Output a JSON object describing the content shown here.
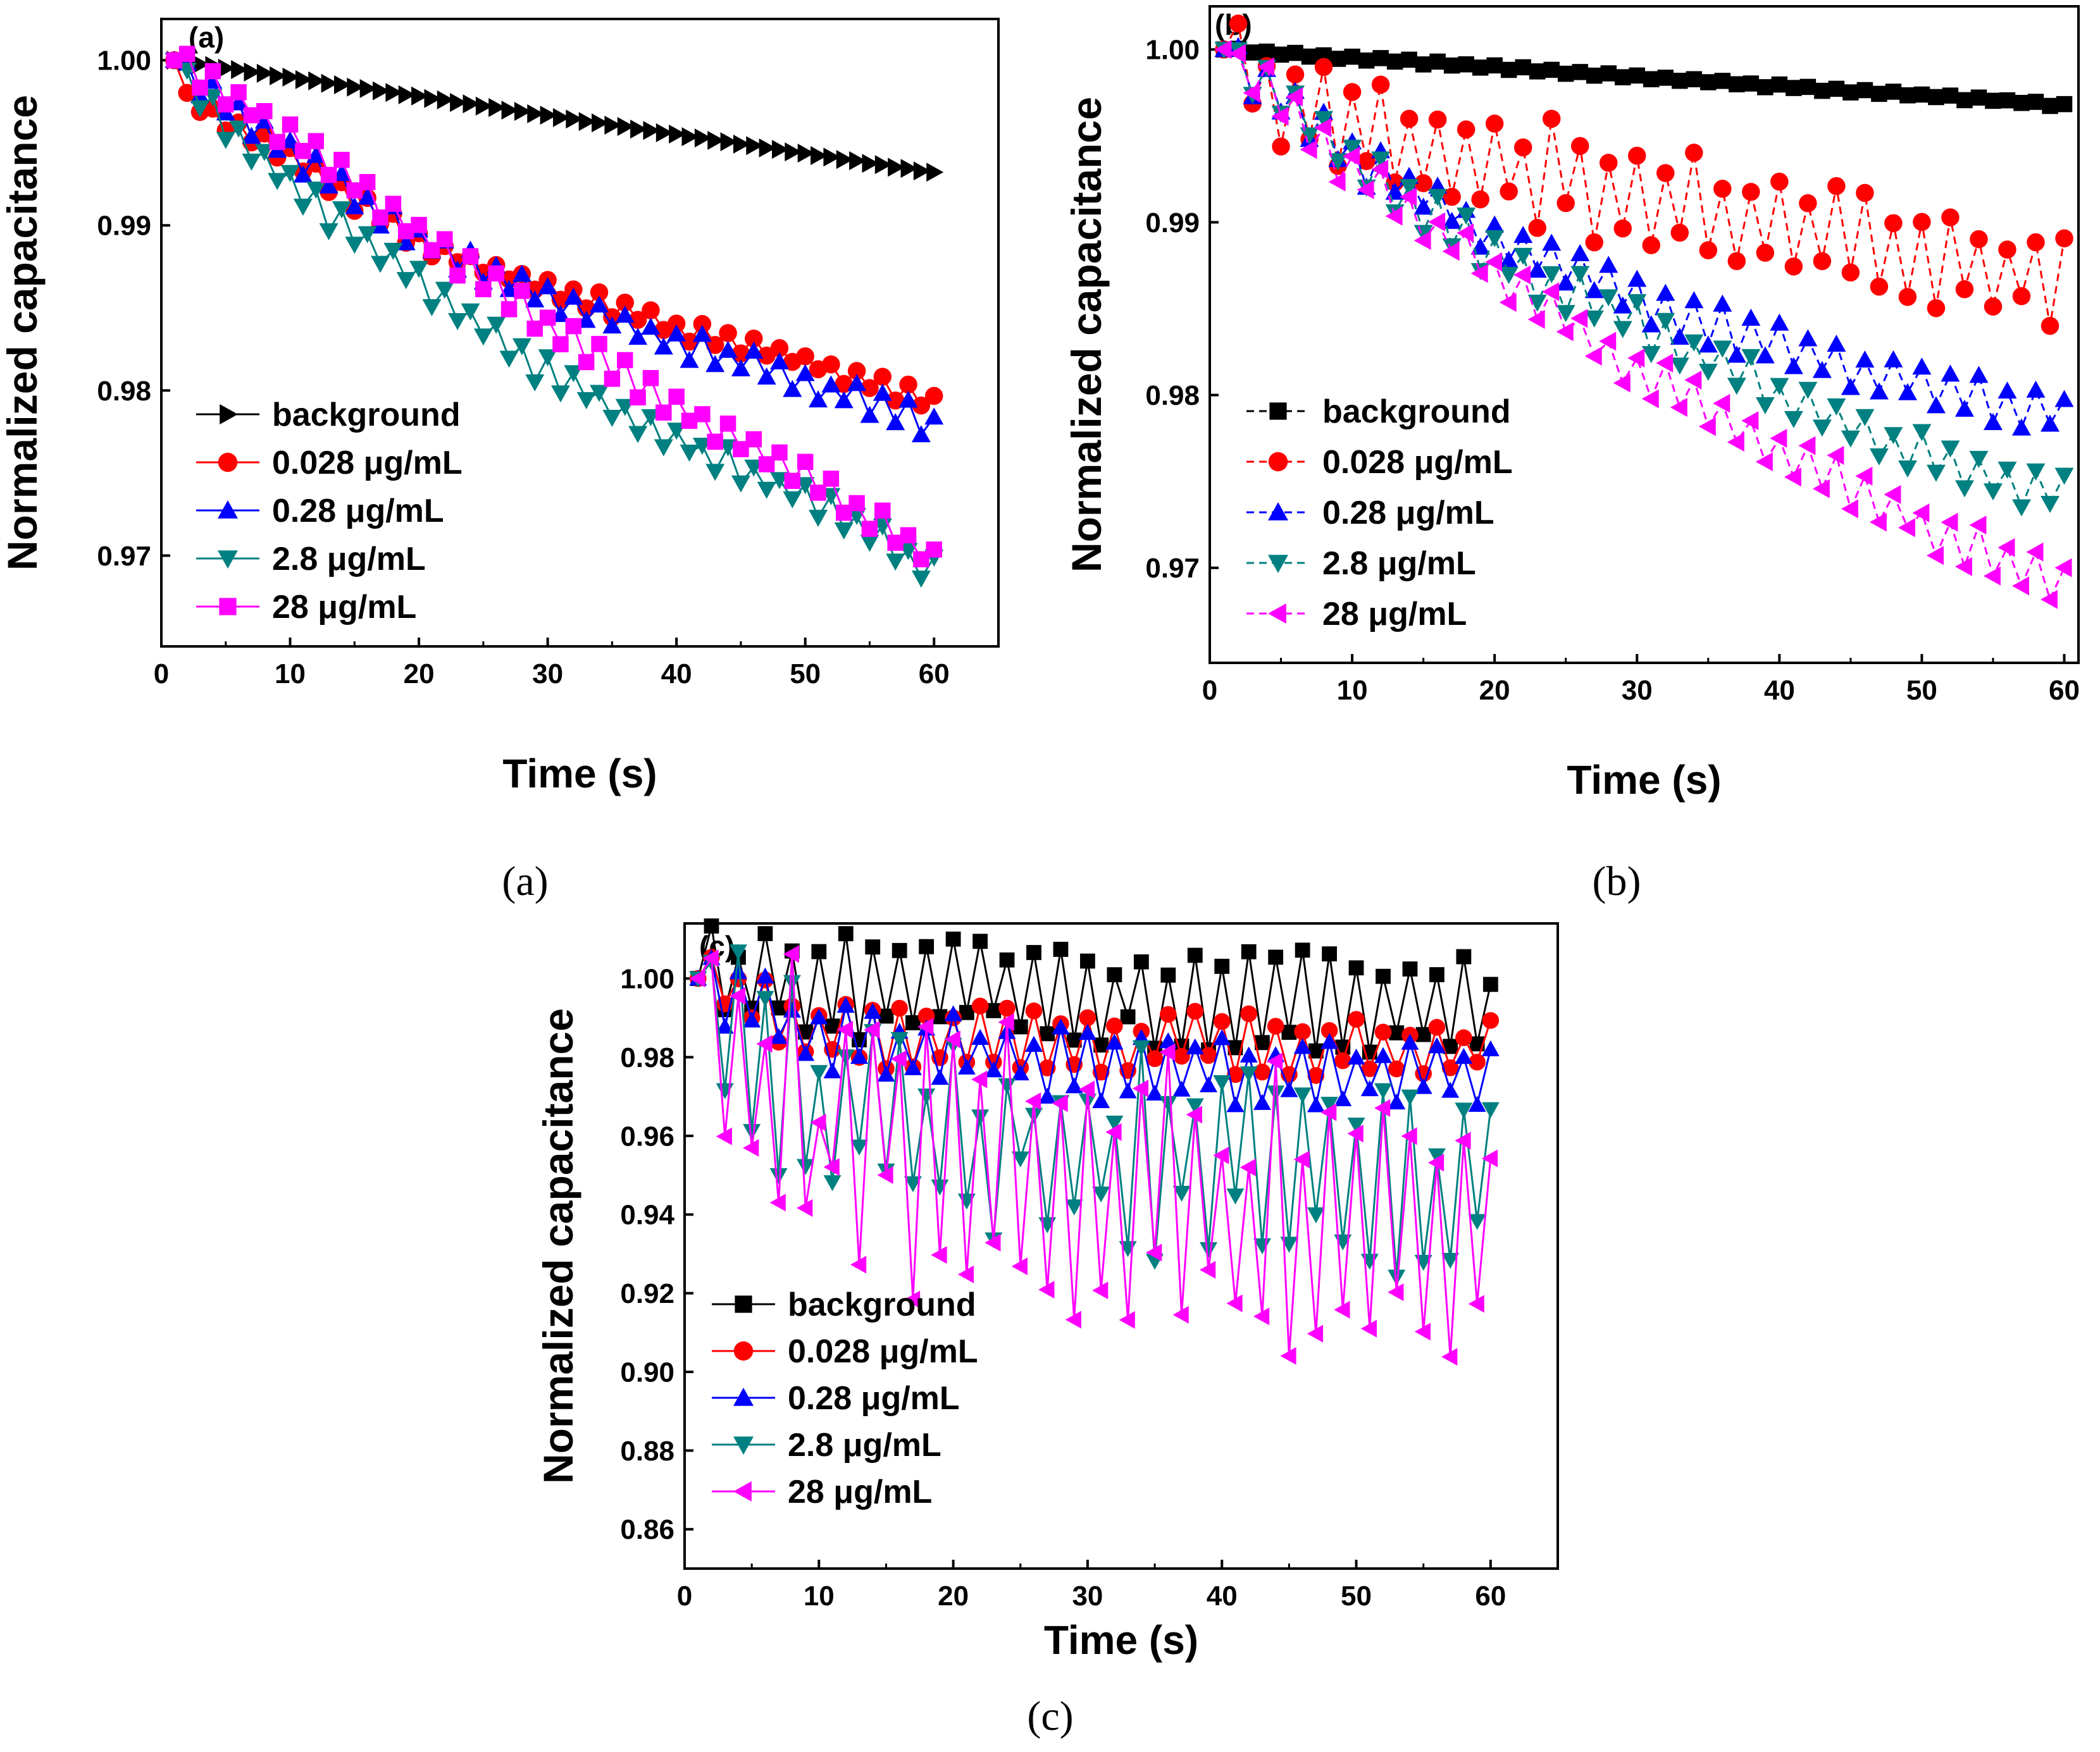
{
  "chart_data": [
    {
      "panel": "(a)",
      "caption": "(a)",
      "type": "line",
      "xlabel": "Time (s)",
      "ylabel": "Normalized capacitance",
      "xlim": [
        0,
        65
      ],
      "ylim": [
        0.9645,
        1.0025
      ],
      "xticks": [
        0,
        10,
        20,
        30,
        40,
        50,
        60
      ],
      "yticks": [
        0.97,
        0.98,
        0.99,
        1.0
      ],
      "ytick_labels": [
        "0.97",
        "0.98",
        "0.99",
        "1.00"
      ],
      "legend_position": "bottom-left",
      "series": [
        {
          "name": "background",
          "color": "#000000",
          "marker": "triangle-right",
          "dash": "",
          "anchors": [
            [
              1,
              1.0
            ],
            [
              60,
              0.9932
            ]
          ],
          "amp": 2e-05,
          "seed": 1
        },
        {
          "name": "0.028 μg/mL",
          "color": "#ff0000",
          "marker": "circle",
          "dash": "",
          "anchors": [
            [
              1,
              1.0
            ],
            [
              2,
              0.9976
            ],
            [
              10,
              0.9942
            ],
            [
              20,
              0.989
            ],
            [
              30,
              0.9862
            ],
            [
              40,
              0.9838
            ],
            [
              50,
              0.9818
            ],
            [
              60,
              0.9792
            ]
          ],
          "amp": 0.0006,
          "seed": 2
        },
        {
          "name": "0.28 μg/mL",
          "color": "#0000ff",
          "marker": "triangle-up",
          "dash": "",
          "anchors": [
            [
              1,
              1.0
            ],
            [
              10,
              0.9945
            ],
            [
              20,
              0.9893
            ],
            [
              30,
              0.9855
            ],
            [
              40,
              0.983
            ],
            [
              50,
              0.9805
            ],
            [
              60,
              0.978
            ]
          ],
          "amp": 0.0008,
          "seed": 3
        },
        {
          "name": "2.8 μg/mL",
          "color": "#008080",
          "marker": "triangle-down",
          "dash": "",
          "anchors": [
            [
              1,
              1.0
            ],
            [
              5,
              0.996
            ],
            [
              10,
              0.9925
            ],
            [
              20,
              0.9865
            ],
            [
              30,
              0.981
            ],
            [
              40,
              0.977
            ],
            [
              50,
              0.9735
            ],
            [
              60,
              0.969
            ]
          ],
          "amp": 0.0009,
          "seed": 4
        },
        {
          "name": "28 μg/mL",
          "color": "#ff00ff",
          "marker": "square",
          "dash": "",
          "anchors": [
            [
              1,
              1.0
            ],
            [
              10,
              0.9955
            ],
            [
              20,
              0.9895
            ],
            [
              30,
              0.984
            ],
            [
              40,
              0.979
            ],
            [
              50,
              0.9748
            ],
            [
              60,
              0.9698
            ]
          ],
          "amp": 0.0008,
          "seed": 5
        }
      ]
    },
    {
      "panel": "(b)",
      "caption": "(b)",
      "type": "line",
      "xlabel": "Time (s)",
      "ylabel": "Normalized capacitance",
      "xlim": [
        0,
        61
      ],
      "ylim": [
        0.9645,
        1.0025
      ],
      "xticks": [
        0,
        10,
        20,
        30,
        40,
        50,
        60
      ],
      "yticks": [
        0.97,
        0.98,
        0.99,
        1.0
      ],
      "ytick_labels": [
        "0.97",
        "0.98",
        "0.99",
        "1.00"
      ],
      "legend_position": "bottom-left",
      "series": [
        {
          "name": "background",
          "color": "#000000",
          "marker": "square",
          "dash": "12,8",
          "anchors": [
            [
              1,
              1.0
            ],
            [
              60,
              0.9968
            ]
          ],
          "amp": 0.0001,
          "seed": 6
        },
        {
          "name": "0.028 μg/mL",
          "color": "#ff0000",
          "marker": "circle",
          "dash": "12,8",
          "anchors": [
            [
              1,
              1.0
            ],
            [
              5,
              0.9965
            ],
            [
              10,
              0.9955
            ],
            [
              20,
              0.9935
            ],
            [
              30,
              0.9915
            ],
            [
              40,
              0.9895
            ],
            [
              50,
              0.988
            ],
            [
              60,
              0.9865
            ]
          ],
          "amp": 0.0028,
          "seed": 7
        },
        {
          "name": "0.28 μg/mL",
          "color": "#0000ff",
          "marker": "triangle-up",
          "dash": "12,8",
          "anchors": [
            [
              1,
              1.0
            ],
            [
              10,
              0.9938
            ],
            [
              20,
              0.9893
            ],
            [
              30,
              0.9855
            ],
            [
              40,
              0.9828
            ],
            [
              50,
              0.9805
            ],
            [
              60,
              0.979
            ]
          ],
          "amp": 0.0012,
          "seed": 8
        },
        {
          "name": "2.8 μg/mL",
          "color": "#008080",
          "marker": "triangle-down",
          "dash": "12,8",
          "anchors": [
            [
              1,
              1.0
            ],
            [
              10,
              0.9935
            ],
            [
              20,
              0.988
            ],
            [
              30,
              0.984
            ],
            [
              40,
              0.98
            ],
            [
              50,
              0.9765
            ],
            [
              60,
              0.974
            ]
          ],
          "amp": 0.0012,
          "seed": 9
        },
        {
          "name": "28 μg/mL",
          "color": "#ff00ff",
          "marker": "triangle-left",
          "dash": "12,8",
          "anchors": [
            [
              1,
              1.0
            ],
            [
              10,
              0.993
            ],
            [
              20,
              0.987
            ],
            [
              30,
              0.9815
            ],
            [
              40,
              0.9768
            ],
            [
              50,
              0.9725
            ],
            [
              60,
              0.969
            ]
          ],
          "amp": 0.0012,
          "seed": 10
        }
      ]
    },
    {
      "panel": "(c)",
      "caption": "(c)",
      "type": "line",
      "xlabel": "Time (s)",
      "ylabel": "Normalized capacitance",
      "xlim": [
        0,
        65
      ],
      "ylim": [
        0.85,
        1.014
      ],
      "xticks": [
        0,
        10,
        20,
        30,
        40,
        50,
        60
      ],
      "yticks": [
        0.86,
        0.88,
        0.9,
        0.92,
        0.94,
        0.96,
        0.98,
        1.0
      ],
      "ytick_labels": [
        "0.86",
        "0.88",
        "0.90",
        "0.92",
        "0.94",
        "0.96",
        "0.98",
        "1.00"
      ],
      "legend_position": "bottom-left",
      "series": [
        {
          "name": "background",
          "color": "#000000",
          "marker": "square",
          "dash": "",
          "anchors": [
            [
              1,
              1.0
            ],
            [
              60,
              0.992
            ]
          ],
          "amp": 0.012,
          "seed": 11
        },
        {
          "name": "0.028 μg/mL",
          "color": "#ff0000",
          "marker": "circle",
          "dash": "",
          "anchors": [
            [
              1,
              1.0
            ],
            [
              10,
              0.986
            ],
            [
              30,
              0.984
            ],
            [
              60,
              0.982
            ]
          ],
          "amp": 0.007,
          "seed": 12
        },
        {
          "name": "0.28 μg/mL",
          "color": "#0000ff",
          "marker": "triangle-up",
          "dash": "",
          "anchors": [
            [
              1,
              1.0
            ],
            [
              10,
              0.985
            ],
            [
              30,
              0.978
            ],
            [
              60,
              0.976
            ]
          ],
          "amp": 0.008,
          "seed": 13
        },
        {
          "name": "2.8 μg/mL",
          "color": "#008080",
          "marker": "triangle-down",
          "dash": "",
          "anchors": [
            [
              1,
              1.0
            ],
            [
              10,
              0.975
            ],
            [
              30,
              0.962
            ],
            [
              60,
              0.955
            ]
          ],
          "amp": 0.022,
          "seed": 14
        },
        {
          "name": "28 μg/mL",
          "color": "#ff00ff",
          "marker": "triangle-left",
          "dash": "",
          "anchors": [
            [
              1,
              1.0
            ],
            [
              10,
              0.968
            ],
            [
              30,
              0.955
            ],
            [
              60,
              0.945
            ]
          ],
          "amp": 0.028,
          "seed": 15
        }
      ]
    }
  ]
}
